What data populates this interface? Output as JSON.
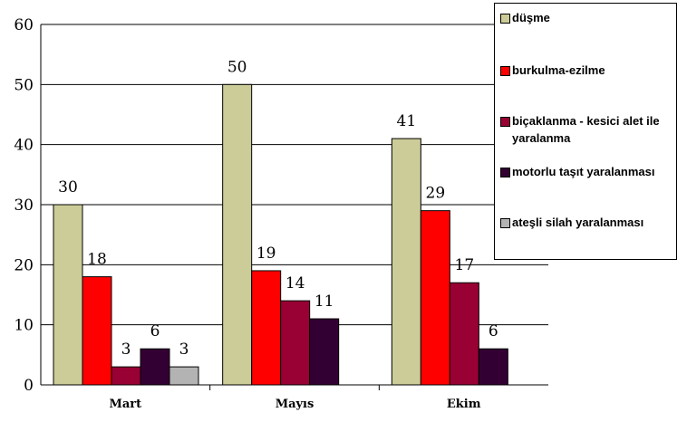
{
  "chart_data": {
    "type": "bar",
    "categories": [
      "Mart",
      "Mayıs",
      "Ekim"
    ],
    "series": [
      {
        "name": "düşme",
        "values": [
          30,
          50,
          41
        ],
        "color": "#cccc99"
      },
      {
        "name": "burkulma-ezilme",
        "values": [
          18,
          19,
          29
        ],
        "color": "#ff0000"
      },
      {
        "name": "biçaklanma - kesici alet ile yaralanma",
        "values": [
          3,
          14,
          17
        ],
        "color": "#990033"
      },
      {
        "name": "motorlu taşıt yaralanması",
        "values": [
          6,
          11,
          6
        ],
        "color": "#330033"
      },
      {
        "name": "ateşli silah yaralanması",
        "values": [
          3,
          null,
          null
        ],
        "color": "#b3b3b3"
      }
    ],
    "ylim": [
      0,
      60
    ],
    "yticks": [
      "0",
      "10",
      "20",
      "30",
      "40",
      "50",
      "60"
    ],
    "grid": true,
    "legend": "right"
  }
}
